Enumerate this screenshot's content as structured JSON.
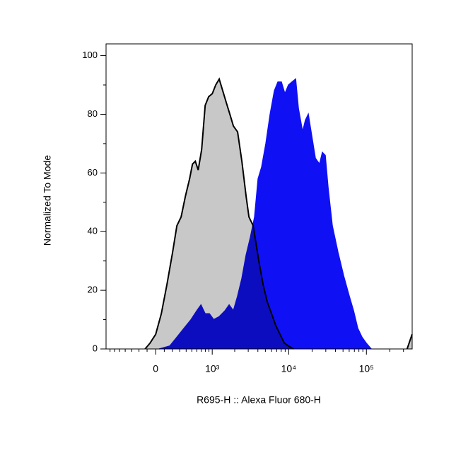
{
  "chart_data": {
    "type": "histogram-overlay",
    "xlabel": "R695-H :: Alexa Fluor 680-H",
    "ylabel": "Normalized To Mode",
    "xscale": "biexponential",
    "linear_width": 388,
    "xlim": [
      -800,
      388000
    ],
    "xticks": [
      0,
      {
        "value": 1000,
        "label": "10³"
      },
      {
        "value": 10000,
        "label": "10⁴"
      },
      {
        "value": 100000,
        "label": "10⁵"
      }
    ],
    "xminorticks": [
      -700,
      -600,
      -500,
      -400,
      -300,
      -200,
      -100,
      100,
      200,
      300,
      400,
      500,
      600,
      700,
      800,
      900,
      2000,
      3000,
      4000,
      5000,
      6000,
      7000,
      8000,
      9000,
      20000,
      30000,
      40000,
      50000,
      60000,
      70000,
      80000,
      90000,
      200000,
      300000
    ],
    "ylim": [
      0,
      104
    ],
    "yticks": [
      0,
      20,
      40,
      60,
      80,
      100
    ],
    "yminorticks": [
      10,
      30,
      50,
      70,
      90
    ],
    "series": [
      {
        "color": "#1010f5",
        "x": [
          41,
          167,
          260,
          364,
          485,
          598,
          691,
          796,
          912,
          1048,
          1245,
          1486,
          1688,
          1921,
          2181,
          2479,
          2817,
          3197,
          3628,
          4027,
          4474,
          5075,
          5758,
          6534,
          7256,
          8032,
          8924,
          9933,
          11019,
          12261,
          13308,
          15093,
          16412,
          17848,
          19400,
          22000,
          24948,
          27121,
          29488,
          32088,
          36356,
          42990,
          50828,
          60140,
          68249,
          77406,
          87688,
          99328,
          115236
        ],
        "values": [
          0,
          1,
          4,
          7,
          10,
          13,
          15,
          12,
          12,
          10,
          11,
          13,
          15,
          13,
          18,
          24,
          32,
          38,
          45,
          58,
          62,
          70,
          80,
          88,
          91,
          91,
          87,
          90,
          91,
          92,
          82,
          74,
          78,
          80,
          74,
          65,
          63,
          67,
          66,
          55,
          42,
          33,
          25,
          18,
          13,
          7,
          4,
          2,
          0
        ]
      },
      {
        "color": "#c8c8c8",
        "x": [
          -124,
          -65,
          0,
          65,
          132,
          203,
          260,
          321,
          387,
          459,
          512,
          568,
          629,
          708,
          796,
          892,
          1001,
          1117,
          1245,
          1389,
          1548,
          1727,
          1921,
          2181,
          2479,
          2817,
          3065,
          3476,
          3783,
          4113,
          4668,
          5296,
          6006,
          6809,
          7721,
          8769,
          9933,
          11485,
          null,
          334068,
          387224
        ],
        "values": [
          0,
          2,
          5,
          12,
          22,
          33,
          42,
          45,
          52,
          58,
          63,
          64,
          61,
          68,
          83,
          86,
          87,
          90,
          92,
          88,
          84,
          80,
          76,
          74,
          64,
          52,
          45,
          42,
          36,
          30,
          22,
          16,
          12,
          8,
          5,
          2,
          1,
          0,
          null,
          0,
          5
        ]
      }
    ]
  }
}
